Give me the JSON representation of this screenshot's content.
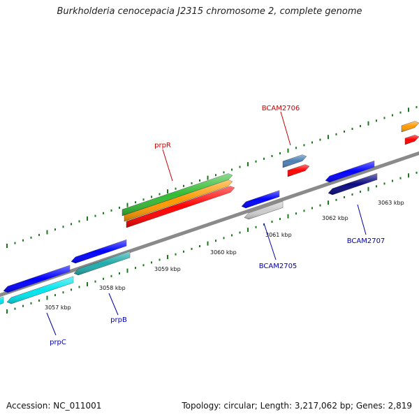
{
  "title": "Burkholderia cenocepacia J2315 chromosome 2, complete genome",
  "footer": {
    "accession": "Accession: NC_011001",
    "topology": "Topology: circular; Length: 3,217,062 bp; Genes: 2,819"
  },
  "kbp_labels": [
    "3057 kbp",
    "3058 kbp",
    "3059 kbp",
    "3060 kbp",
    "3061 kbp",
    "3062 kbp",
    "3063 kbp"
  ],
  "gene_labels": [
    {
      "name": "prpR",
      "color": "#cc0000"
    },
    {
      "name": "BCAM2706",
      "color": "#cc0000"
    },
    {
      "name": "BCAM2705",
      "color": "#0000aa"
    },
    {
      "name": "BCAM2707",
      "color": "#0000aa"
    },
    {
      "name": "prpB",
      "color": "#0000aa"
    },
    {
      "name": "prpC",
      "color": "#0000aa"
    }
  ],
  "colors": {
    "backbone": "#8a8a8a",
    "ticks": "#1a7a1a",
    "forward_cds": "#ff0000",
    "forward_gene": "#4a7fb5",
    "reverse_cds": "#0000ff",
    "reverse_gene": "#0a0a80",
    "rrna_green": "#33bb33",
    "orange": "#ff9900",
    "cyan": "#00e5ee",
    "teal": "#22aaaa",
    "grey": "#cccccc"
  }
}
